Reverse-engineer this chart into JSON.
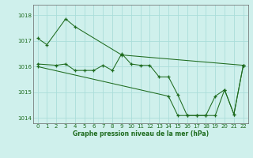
{
  "background_color": "#cff0ec",
  "grid_color": "#aaddda",
  "line_color": "#1e6b1e",
  "xlabel": "Graphe pression niveau de la mer (hPa)",
  "ylim": [
    1013.8,
    1018.4
  ],
  "xlim": [
    -0.5,
    22.5
  ],
  "yticks": [
    1014,
    1015,
    1016,
    1017,
    1018
  ],
  "xticks": [
    0,
    1,
    2,
    3,
    4,
    5,
    6,
    7,
    8,
    9,
    10,
    11,
    12,
    13,
    14,
    15,
    16,
    17,
    18,
    19,
    20,
    21,
    22
  ],
  "series": [
    {
      "x": [
        0,
        1,
        3,
        4,
        9,
        22
      ],
      "y": [
        1017.1,
        1016.85,
        1017.85,
        1017.55,
        1016.45,
        1016.05
      ]
    },
    {
      "x": [
        0,
        2,
        3,
        4,
        5,
        6,
        7,
        8,
        9,
        10,
        11,
        12,
        13,
        14,
        15,
        16,
        17,
        18,
        19,
        20,
        21,
        22
      ],
      "y": [
        1016.1,
        1016.05,
        1016.1,
        1015.85,
        1015.85,
        1015.85,
        1016.05,
        1015.85,
        1016.5,
        1016.1,
        1016.05,
        1016.05,
        1015.6,
        1015.6,
        1014.9,
        1014.1,
        1014.1,
        1014.1,
        1014.1,
        1015.1,
        1014.15,
        1016.05
      ]
    },
    {
      "x": [
        0,
        14,
        15,
        16,
        17,
        18,
        19,
        20,
        21,
        22
      ],
      "y": [
        1016.0,
        1014.85,
        1014.1,
        1014.1,
        1014.1,
        1014.1,
        1014.85,
        1015.1,
        1014.15,
        1016.05
      ]
    }
  ]
}
